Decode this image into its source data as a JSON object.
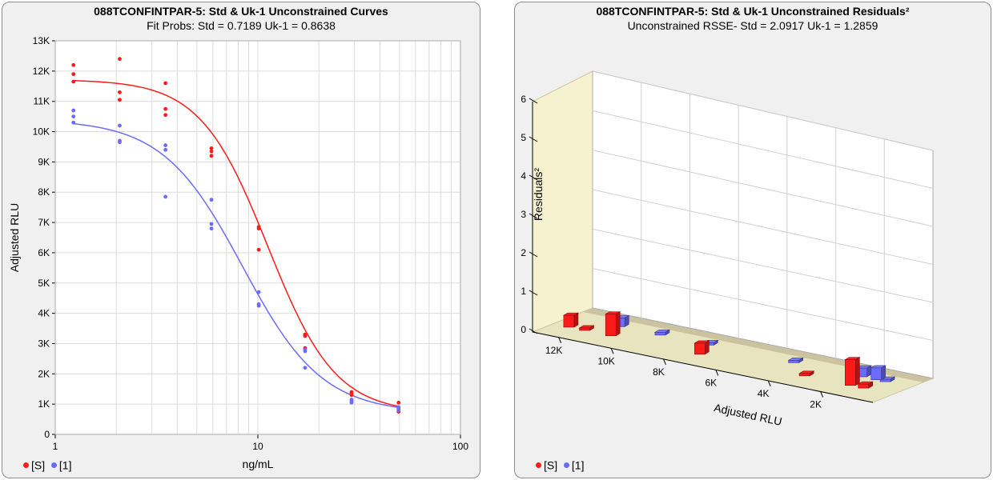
{
  "colors": {
    "red": "#ff1a1a",
    "blue": "#6b6bff"
  },
  "chart_data": [
    {
      "type": "scatter",
      "title": "088TCONFINTPAR-5: Std & Uk-1  Unconstrained Curves",
      "subtitle": "Fit Probs: Std = 0.7189  Uk-1 = 0.8638",
      "xlabel": "ng/mL",
      "ylabel": "Adjusted RLU",
      "xscale": "log",
      "xlim": [
        1,
        100
      ],
      "ylim": [
        0,
        13000
      ],
      "xticks": [
        "1",
        "10",
        "100"
      ],
      "yticks": [
        "0",
        "1K",
        "2K",
        "3K",
        "4K",
        "5K",
        "6K",
        "7K",
        "8K",
        "9K",
        "10K",
        "11K",
        "12K",
        "13K"
      ],
      "grid": true,
      "legend": "bottom-left",
      "series": [
        {
          "name": "[S]",
          "color": "#ff1a1a",
          "points": [
            [
              1.23,
              12200
            ],
            [
              1.23,
              11900
            ],
            [
              1.23,
              11650
            ],
            [
              2.08,
              12400
            ],
            [
              2.08,
              11300
            ],
            [
              2.08,
              11050
            ],
            [
              3.5,
              11600
            ],
            [
              3.5,
              10750
            ],
            [
              3.5,
              10550
            ],
            [
              5.9,
              9450
            ],
            [
              5.9,
              9350
            ],
            [
              5.9,
              9200
            ],
            [
              10.1,
              6850
            ],
            [
              10.1,
              6800
            ],
            [
              10.1,
              6100
            ],
            [
              17.1,
              3300
            ],
            [
              17.1,
              3250
            ],
            [
              17.1,
              2850
            ],
            [
              29,
              1400
            ],
            [
              29,
              1350
            ],
            [
              29,
              1300
            ],
            [
              49.5,
              1050
            ],
            [
              49.5,
              850
            ],
            [
              49.5,
              750
            ]
          ],
          "curve": {
            "A": 11720,
            "D": 700,
            "C": 11.2,
            "B": 2.6
          }
        },
        {
          "name": "[1]",
          "color": "#6b6bff",
          "points": [
            [
              1.23,
              10700
            ],
            [
              1.23,
              10500
            ],
            [
              1.23,
              10300
            ],
            [
              2.08,
              10200
            ],
            [
              2.08,
              9700
            ],
            [
              2.08,
              9650
            ],
            [
              3.5,
              9550
            ],
            [
              3.5,
              9400
            ],
            [
              3.5,
              7850
            ],
            [
              5.9,
              7750
            ],
            [
              5.9,
              6950
            ],
            [
              5.9,
              6800
            ],
            [
              10.1,
              4700
            ],
            [
              10.1,
              4300
            ],
            [
              10.1,
              4250
            ],
            [
              17.1,
              2800
            ],
            [
              17.1,
              2750
            ],
            [
              17.1,
              2200
            ],
            [
              29,
              1150
            ],
            [
              29,
              1100
            ],
            [
              29,
              1050
            ],
            [
              49.5,
              900
            ],
            [
              49.5,
              850
            ],
            [
              49.5,
              800
            ]
          ],
          "curve": {
            "A": 10400,
            "D": 700,
            "C": 8.4,
            "B": 2.2
          }
        }
      ]
    },
    {
      "type": "bar",
      "title": "088TCONFINTPAR-5: Std & Uk-1  Unconstrained Residuals²",
      "subtitle": "Unconstrained RSSE- Std = 2.0917  Uk-1 = 1.2859",
      "xlabel": "Adjusted RLU",
      "ylabel": "Residuals²",
      "xlim": [
        13000,
        0
      ],
      "ylim": [
        0,
        6
      ],
      "xticks": [
        "12K",
        "10K",
        "8K",
        "6K",
        "4K",
        "2K"
      ],
      "yticks": [
        "0",
        "1",
        "2",
        "3",
        "4",
        "5",
        "6"
      ],
      "grid": true,
      "legend": "bottom-left",
      "series": [
        {
          "name": "[S]",
          "color": "#ff1a1a",
          "bars": [
            [
              12200,
              0.3
            ],
            [
              11600,
              0.05
            ],
            [
              10600,
              0.55
            ],
            [
              7200,
              0.28
            ],
            [
              3200,
              0.06
            ],
            [
              1450,
              0.65
            ],
            [
              950,
              0.1
            ]
          ]
        },
        {
          "name": "[1]",
          "color": "#6b6bff",
          "bars": [
            [
              10950,
              0.22
            ],
            [
              9400,
              0.07
            ],
            [
              7550,
              0.06
            ],
            [
              4300,
              0.04
            ],
            [
              1700,
              0.22
            ],
            [
              1150,
              0.3
            ],
            [
              800,
              0.02
            ]
          ]
        }
      ]
    }
  ]
}
